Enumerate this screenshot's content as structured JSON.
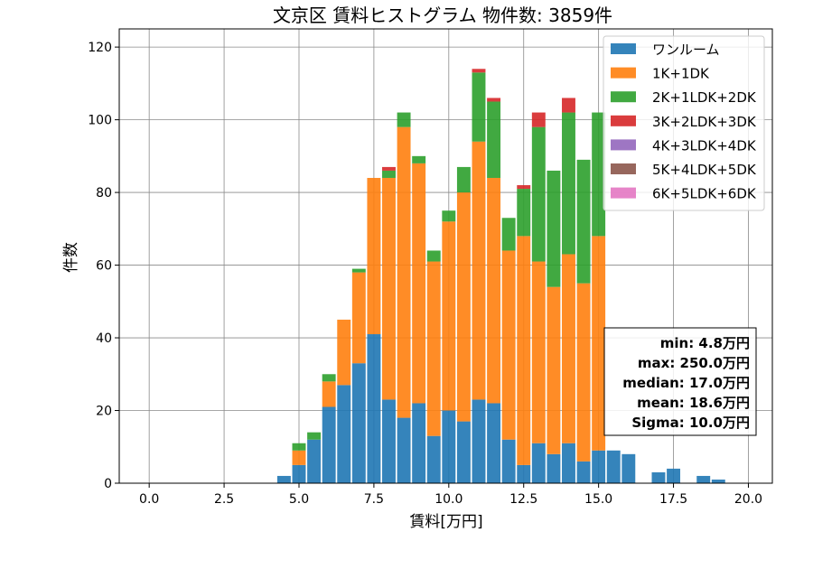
{
  "chart_data": {
    "type": "bar",
    "stacked": true,
    "title": "文京区 賃料ヒストグラム 物件数: 3859件",
    "xlabel": "賃料[万円]",
    "ylabel": "件数",
    "xlim": [
      -1.0,
      20.8
    ],
    "ylim": [
      0,
      125
    ],
    "grid": true,
    "legend_position": "top-right",
    "x_ticks": [
      {
        "value": 0.0,
        "label": "0.0"
      },
      {
        "value": 2.5,
        "label": "2.5"
      },
      {
        "value": 5.0,
        "label": "5.0"
      },
      {
        "value": 7.5,
        "label": "7.5"
      },
      {
        "value": 10.0,
        "label": "10.0"
      },
      {
        "value": 12.5,
        "label": "12.5"
      },
      {
        "value": 15.0,
        "label": "15.0"
      },
      {
        "value": 17.5,
        "label": "17.5"
      },
      {
        "value": 20.0,
        "label": "20.0"
      }
    ],
    "y_ticks": [
      {
        "value": 0,
        "label": "0"
      },
      {
        "value": 20,
        "label": "20"
      },
      {
        "value": 40,
        "label": "40"
      },
      {
        "value": 60,
        "label": "60"
      },
      {
        "value": 80,
        "label": "80"
      },
      {
        "value": 100,
        "label": "100"
      },
      {
        "value": 120,
        "label": "120"
      }
    ],
    "bin_width": 0.5,
    "bins": [
      4.5,
      5.0,
      5.5,
      6.0,
      6.5,
      7.0,
      7.5,
      8.0,
      8.5,
      9.0,
      9.5,
      10.0,
      10.5,
      11.0,
      11.5,
      12.0,
      12.5,
      13.0,
      13.5,
      14.0,
      14.5,
      15.0,
      15.5,
      16.0,
      16.5,
      17.0,
      17.5,
      18.0,
      18.5,
      19.0,
      19.5
    ],
    "series": [
      {
        "name": "ワンルーム",
        "color": "#1f77b4",
        "values": [
          2,
          5,
          12,
          21,
          27,
          33,
          41,
          23,
          18,
          22,
          13,
          20,
          17,
          23,
          22,
          12,
          5,
          11,
          8,
          11,
          6,
          9,
          9,
          8,
          0,
          3,
          4,
          0,
          2,
          1,
          0
        ]
      },
      {
        "name": "1K+1DK",
        "color": "#ff7f0e",
        "values": [
          0,
          4,
          0,
          7,
          18,
          25,
          43,
          61,
          80,
          66,
          48,
          52,
          63,
          71,
          62,
          52,
          63,
          50,
          46,
          52,
          49,
          59,
          0,
          0,
          0,
          0,
          0,
          0,
          0,
          0,
          0
        ]
      },
      {
        "name": "2K+1LDK+2DK",
        "color": "#2ca02c",
        "values": [
          0,
          2,
          2,
          2,
          0,
          1,
          0,
          2,
          4,
          2,
          3,
          3,
          7,
          19,
          21,
          9,
          13,
          37,
          32,
          39,
          34,
          34,
          0,
          0,
          0,
          0,
          0,
          0,
          0,
          0,
          0
        ]
      },
      {
        "name": "3K+2LDK+3DK",
        "color": "#d62728",
        "values": [
          0,
          0,
          0,
          0,
          0,
          0,
          0,
          1,
          0,
          0,
          0,
          0,
          0,
          1,
          1,
          0,
          1,
          4,
          0,
          4,
          0,
          0,
          0,
          0,
          0,
          0,
          0,
          0,
          0,
          0,
          0
        ]
      },
      {
        "name": "4K+3LDK+4DK",
        "color": "#9467bd",
        "values": [
          0,
          0,
          0,
          0,
          0,
          0,
          0,
          0,
          0,
          0,
          0,
          0,
          0,
          0,
          0,
          0,
          0,
          0,
          0,
          0,
          0,
          0,
          0,
          0,
          0,
          0,
          0,
          0,
          0,
          0,
          0
        ]
      },
      {
        "name": "5K+4LDK+5DK",
        "color": "#8c564b",
        "values": [
          0,
          0,
          0,
          0,
          0,
          0,
          0,
          0,
          0,
          0,
          0,
          0,
          0,
          0,
          0,
          0,
          0,
          0,
          0,
          0,
          0,
          0,
          0,
          0,
          0,
          0,
          0,
          0,
          0,
          0,
          0
        ]
      },
      {
        "name": "6K+5LDK+6DK",
        "color": "#e377c2",
        "values": [
          0,
          0,
          0,
          0,
          0,
          0,
          0,
          0,
          0,
          0,
          0,
          0,
          0,
          0,
          0,
          0,
          0,
          0,
          0,
          0,
          0,
          0,
          0,
          0,
          0,
          0,
          0,
          0,
          0,
          0,
          0
        ]
      }
    ],
    "stats_box": {
      "lines": [
        "min: 4.8万円",
        "max: 250.0万円",
        "median: 17.0万円",
        "mean: 18.6万円",
        "Sigma: 10.0万円"
      ],
      "position": "right-middle"
    }
  }
}
